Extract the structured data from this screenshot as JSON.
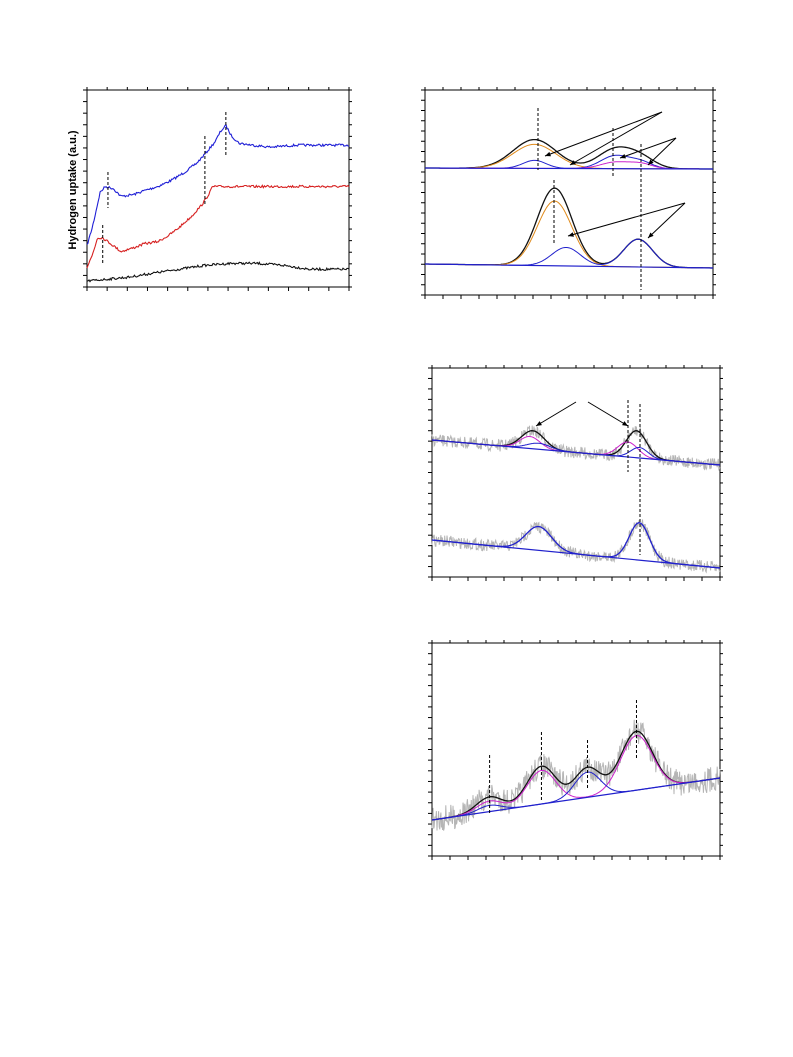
{
  "panel_a": {
    "ylabel": "Hydrogen uptake (a.u.)"
  },
  "chart_data": [
    {
      "type": "line",
      "title": "",
      "xlabel": "",
      "ylabel": "Hydrogen uptake (a.u.)",
      "series": [
        {
          "color": "#1f1fd6",
          "points": [
            [
              0.0,
              0.79
            ],
            [
              0.02,
              0.7
            ],
            [
              0.05,
              0.52
            ],
            [
              0.07,
              0.49
            ],
            [
              0.1,
              0.5
            ],
            [
              0.13,
              0.54
            ],
            [
              0.18,
              0.53
            ],
            [
              0.22,
              0.51
            ],
            [
              0.27,
              0.49
            ],
            [
              0.32,
              0.46
            ],
            [
              0.37,
              0.42
            ],
            [
              0.42,
              0.37
            ],
            [
              0.46,
              0.31
            ],
            [
              0.49,
              0.26
            ],
            [
              0.51,
              0.21
            ],
            [
              0.53,
              0.18
            ],
            [
              0.55,
              0.23
            ],
            [
              0.58,
              0.27
            ],
            [
              0.63,
              0.28
            ],
            [
              0.7,
              0.29
            ],
            [
              0.8,
              0.28
            ],
            [
              0.9,
              0.28
            ],
            [
              1.0,
              0.28
            ]
          ]
        },
        {
          "color": "#d62020",
          "points": [
            [
              0.0,
              0.9
            ],
            [
              0.02,
              0.84
            ],
            [
              0.04,
              0.75
            ],
            [
              0.06,
              0.75
            ],
            [
              0.09,
              0.78
            ],
            [
              0.13,
              0.82
            ],
            [
              0.18,
              0.8
            ],
            [
              0.22,
              0.78
            ],
            [
              0.27,
              0.77
            ],
            [
              0.31,
              0.74
            ],
            [
              0.35,
              0.7
            ],
            [
              0.4,
              0.64
            ],
            [
              0.44,
              0.58
            ],
            [
              0.46,
              0.54
            ],
            [
              0.48,
              0.49
            ],
            [
              0.52,
              0.49
            ],
            [
              0.6,
              0.49
            ],
            [
              0.7,
              0.49
            ],
            [
              0.8,
              0.49
            ],
            [
              0.9,
              0.49
            ],
            [
              1.0,
              0.49
            ]
          ]
        },
        {
          "color": "#111111",
          "points": [
            [
              0.0,
              0.97
            ],
            [
              0.08,
              0.96
            ],
            [
              0.16,
              0.95
            ],
            [
              0.25,
              0.93
            ],
            [
              0.35,
              0.91
            ],
            [
              0.45,
              0.89
            ],
            [
              0.55,
              0.88
            ],
            [
              0.65,
              0.88
            ],
            [
              0.75,
              0.89
            ],
            [
              0.85,
              0.91
            ],
            [
              0.93,
              0.91
            ],
            [
              1.0,
              0.91
            ]
          ]
        }
      ],
      "markers": [
        0.08,
        0.06,
        0.45,
        0.53
      ]
    },
    {
      "type": "line",
      "title": "",
      "series": [
        {
          "group": "top",
          "color": "#111111",
          "role": "envelope",
          "peaks": [
            [
              0.38,
              0.18,
              0.075
            ],
            [
              0.66,
              0.12,
              0.06
            ],
            [
              0.75,
              0.06,
              0.05
            ]
          ]
        },
        {
          "group": "top",
          "color": "#e08a1a",
          "role": "component",
          "peaks": [
            [
              0.38,
              0.15,
              0.075
            ]
          ]
        },
        {
          "group": "top",
          "color": "#2020cc",
          "role": "component",
          "peaks": [
            [
              0.38,
              0.05,
              0.04
            ],
            [
              0.66,
              0.08,
              0.05
            ],
            [
              0.75,
              0.04,
              0.04
            ]
          ]
        },
        {
          "group": "top",
          "color": "#cc22cc",
          "role": "component",
          "peaks": [
            [
              0.66,
              0.04,
              0.05
            ],
            [
              0.75,
              0.03,
              0.04
            ]
          ]
        },
        {
          "group": "bottom",
          "color": "#111111",
          "role": "envelope",
          "peaks": [
            [
              0.45,
              0.42,
              0.06
            ],
            [
              0.74,
              0.15,
              0.05
            ]
          ]
        },
        {
          "group": "bottom",
          "color": "#e08a1a",
          "role": "component",
          "peaks": [
            [
              0.45,
              0.35,
              0.06
            ]
          ]
        },
        {
          "group": "bottom",
          "color": "#2020cc",
          "role": "component",
          "peaks": [
            [
              0.49,
              0.1,
              0.05
            ],
            [
              0.74,
              0.15,
              0.05
            ]
          ]
        }
      ]
    },
    {
      "type": "line",
      "title": "",
      "series": [
        {
          "group": "top",
          "color": "#111111",
          "role": "envelope",
          "peaks": [
            [
              0.35,
              0.12,
              0.04
            ],
            [
              0.71,
              0.18,
              0.035
            ]
          ]
        },
        {
          "group": "top",
          "color": "#cc22cc",
          "role": "component",
          "peaks": [
            [
              0.34,
              0.08,
              0.035
            ],
            [
              0.68,
              0.1,
              0.035
            ]
          ]
        },
        {
          "group": "top",
          "color": "#2020cc",
          "role": "component",
          "peaks": [
            [
              0.37,
              0.04,
              0.04
            ],
            [
              0.72,
              0.07,
              0.03
            ]
          ]
        },
        {
          "group": "bottom",
          "color": "#2020cc",
          "role": "envelope",
          "peaks": [
            [
              0.37,
              0.14,
              0.045
            ],
            [
              0.72,
              0.22,
              0.035
            ]
          ]
        }
      ]
    },
    {
      "type": "line",
      "title": "",
      "series": [
        {
          "color": "#111111",
          "role": "envelope",
          "peaks": [
            [
              0.2,
              0.07,
              0.045
            ],
            [
              0.38,
              0.18,
              0.05
            ],
            [
              0.54,
              0.14,
              0.045
            ],
            [
              0.71,
              0.28,
              0.055
            ]
          ]
        },
        {
          "color": "#cc22cc",
          "role": "component",
          "peaks": [
            [
              0.2,
              0.05,
              0.045
            ],
            [
              0.38,
              0.16,
              0.05
            ],
            [
              0.71,
              0.26,
              0.055
            ]
          ]
        },
        {
          "color": "#2020cc",
          "role": "component",
          "peaks": [
            [
              0.54,
              0.12,
              0.045
            ],
            [
              0.2,
              0.03,
              0.04
            ]
          ]
        }
      ],
      "markers": [
        0.2,
        0.38,
        0.54,
        0.71
      ]
    }
  ]
}
